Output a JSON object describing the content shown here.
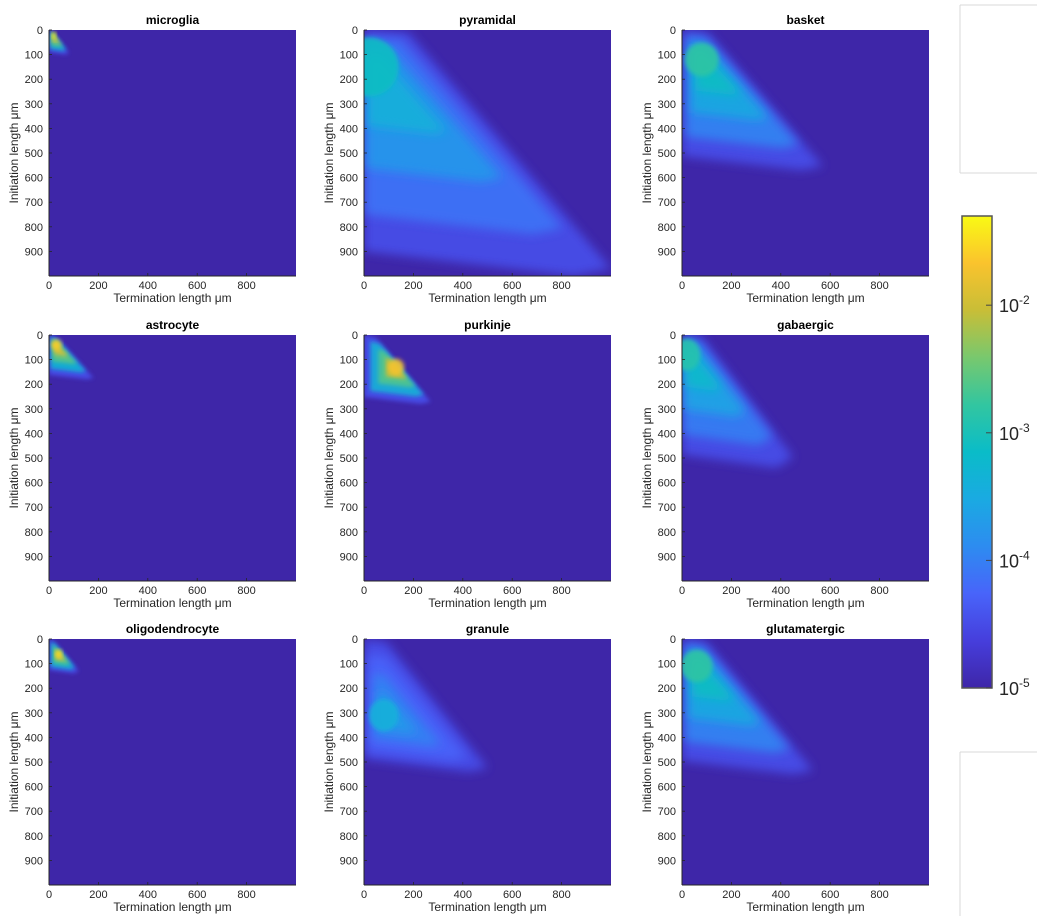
{
  "chart_data": [
    {
      "type": "heatmap",
      "title": "microglia",
      "xlabel": "Termination length μm",
      "ylabel": "Initiation length μm",
      "xlim": [
        0,
        1000
      ],
      "ylim": [
        1000,
        0
      ],
      "x_ticks": [
        "0",
        "200",
        "400",
        "600",
        "800"
      ],
      "y_ticks": [
        "0",
        "100",
        "200",
        "300",
        "400",
        "500",
        "600",
        "700",
        "800",
        "900"
      ],
      "shape": {
        "max_initiation": 100,
        "max_termination": 80,
        "peak": [
          20,
          20
        ],
        "peak_log10": -1.6
      }
    },
    {
      "type": "heatmap",
      "title": "pyramidal",
      "xlabel": "Termination length μm",
      "ylabel": "Initiation length μm",
      "xlim": [
        0,
        1000
      ],
      "ylim": [
        1000,
        0
      ],
      "x_ticks": [
        "0",
        "200",
        "400",
        "600",
        "800"
      ],
      "y_ticks": [
        "0",
        "100",
        "200",
        "300",
        "400",
        "500",
        "600",
        "700",
        "800",
        "900"
      ],
      "shape": {
        "max_initiation": 1000,
        "max_termination": 1000,
        "peak": [
          20,
          150
        ],
        "peak_log10": -3.4
      }
    },
    {
      "type": "heatmap",
      "title": "basket",
      "xlabel": "Termination length μm",
      "ylabel": "Initiation length μm",
      "xlim": [
        0,
        1000
      ],
      "ylim": [
        1000,
        0
      ],
      "x_ticks": [
        "0",
        "200",
        "400",
        "600",
        "800"
      ],
      "y_ticks": [
        "0",
        "100",
        "200",
        "300",
        "400",
        "500",
        "600",
        "700",
        "800",
        "900"
      ],
      "shape": {
        "max_initiation": 570,
        "max_termination": 570,
        "peak": [
          80,
          120
        ],
        "peak_log10": -3.1
      }
    },
    {
      "type": "heatmap",
      "title": "astrocyte",
      "xlabel": "Termination length μm",
      "ylabel": "Initiation length μm",
      "xlim": [
        0,
        1000
      ],
      "ylim": [
        1000,
        0
      ],
      "x_ticks": [
        "0",
        "200",
        "400",
        "600",
        "800"
      ],
      "y_ticks": [
        "0",
        "100",
        "200",
        "300",
        "400",
        "500",
        "600",
        "700",
        "800",
        "900"
      ],
      "shape": {
        "max_initiation": 180,
        "max_termination": 180,
        "peak": [
          30,
          40
        ],
        "peak_log10": -1.9
      }
    },
    {
      "type": "heatmap",
      "title": "purkinje",
      "xlabel": "Termination length μm",
      "ylabel": "Initiation length μm",
      "xlim": [
        0,
        1000
      ],
      "ylim": [
        1000,
        0
      ],
      "x_ticks": [
        "0",
        "200",
        "400",
        "600",
        "800"
      ],
      "y_ticks": [
        "0",
        "100",
        "200",
        "300",
        "400",
        "500",
        "600",
        "700",
        "800",
        "900"
      ],
      "shape": {
        "max_initiation": 280,
        "max_termination": 270,
        "peak": [
          130,
          130
        ],
        "peak_log10": -2.0
      }
    },
    {
      "type": "heatmap",
      "title": "gabaergic",
      "xlabel": "Termination length μm",
      "ylabel": "Initiation length μm",
      "xlim": [
        0,
        1000
      ],
      "ylim": [
        1000,
        0
      ],
      "x_ticks": [
        "0",
        "200",
        "400",
        "600",
        "800"
      ],
      "y_ticks": [
        "0",
        "100",
        "200",
        "300",
        "400",
        "500",
        "600",
        "700",
        "800",
        "900"
      ],
      "shape": {
        "max_initiation": 540,
        "max_termination": 450,
        "peak": [
          20,
          80
        ],
        "peak_log10": -3.2
      }
    },
    {
      "type": "heatmap",
      "title": "oligodendrocyte",
      "xlabel": "Termination length μm",
      "ylabel": "Initiation length μm",
      "xlim": [
        0,
        1000
      ],
      "ylim": [
        1000,
        0
      ],
      "x_ticks": [
        "0",
        "200",
        "400",
        "600",
        "800"
      ],
      "y_ticks": [
        "0",
        "100",
        "200",
        "300",
        "400",
        "500",
        "600",
        "700",
        "800",
        "900"
      ],
      "shape": {
        "max_initiation": 140,
        "max_termination": 120,
        "peak": [
          40,
          60
        ],
        "peak_log10": -1.8
      }
    },
    {
      "type": "heatmap",
      "title": "granule",
      "xlabel": "Termination length μm",
      "ylabel": "Initiation length μm",
      "xlim": [
        0,
        1000
      ],
      "ylim": [
        1000,
        0
      ],
      "x_ticks": [
        "0",
        "200",
        "400",
        "600",
        "800"
      ],
      "y_ticks": [
        "0",
        "100",
        "200",
        "300",
        "400",
        "500",
        "600",
        "700",
        "800",
        "900"
      ],
      "shape": {
        "max_initiation": 540,
        "max_termination": 500,
        "peak": [
          80,
          310
        ],
        "peak_log10": -3.7
      }
    },
    {
      "type": "heatmap",
      "title": "glutamatergic",
      "xlabel": "Termination length μm",
      "ylabel": "Initiation length μm",
      "xlim": [
        0,
        1000
      ],
      "ylim": [
        1000,
        0
      ],
      "x_ticks": [
        "0",
        "200",
        "400",
        "600",
        "800"
      ],
      "y_ticks": [
        "0",
        "100",
        "200",
        "300",
        "400",
        "500",
        "600",
        "700",
        "800",
        "900"
      ],
      "shape": {
        "max_initiation": 550,
        "max_termination": 530,
        "peak": [
          60,
          110
        ],
        "peak_log10": -3.1
      }
    }
  ],
  "colorbar": {
    "scale": "log",
    "range": [
      1e-05,
      0.05
    ],
    "ticks": [
      {
        "base": "10",
        "exp": "-2",
        "value": 0.01
      },
      {
        "base": "10",
        "exp": "-3",
        "value": 0.001
      },
      {
        "base": "10",
        "exp": "-4",
        "value": 0.0001
      },
      {
        "base": "10",
        "exp": "-5",
        "value": 1e-05
      }
    ],
    "colormap": "parula"
  },
  "colors": {
    "background": "#3e26a8",
    "axis": "#262626"
  }
}
